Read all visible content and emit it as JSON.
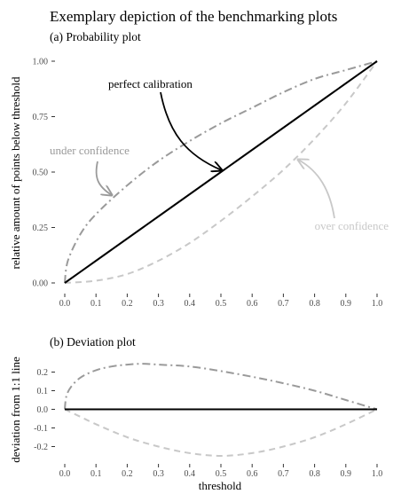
{
  "title": "Exemplary depiction of the benchmarking plots",
  "colors": {
    "perfect": "#000000",
    "under": "#9a9a9a",
    "over": "#c8c8c8",
    "tick_text": "#4d4d4d"
  },
  "chart_data": [
    {
      "type": "line",
      "subtitle": "(a) Probability plot",
      "xlabel": "",
      "ylabel": "relative amount of points below threshold",
      "xlim": [
        0,
        1
      ],
      "ylim": [
        0,
        1
      ],
      "x_ticks": [
        "0.0",
        "0.1",
        "0.2",
        "0.3",
        "0.4",
        "0.5",
        "0.6",
        "0.7",
        "0.8",
        "0.9",
        "1.0"
      ],
      "y_ticks": [
        "0.00",
        "0.25",
        "0.50",
        "0.75",
        "1.00"
      ],
      "grid": false,
      "series": [
        {
          "role": "perfect",
          "style": "solid",
          "x": [
            0,
            0.1,
            0.2,
            0.3,
            0.4,
            0.5,
            0.6,
            0.7,
            0.8,
            0.9,
            1.0
          ],
          "y": [
            0,
            0.1,
            0.2,
            0.3,
            0.4,
            0.5,
            0.6,
            0.7,
            0.8,
            0.9,
            1.0
          ]
        },
        {
          "role": "under",
          "style": "dot-dash",
          "x": [
            0,
            0.01,
            0.05,
            0.1,
            0.2,
            0.3,
            0.4,
            0.5,
            0.6,
            0.7,
            0.8,
            0.9,
            1.0
          ],
          "y": [
            0,
            0.1,
            0.22,
            0.31,
            0.44,
            0.55,
            0.64,
            0.72,
            0.79,
            0.86,
            0.92,
            0.96,
            1.0
          ]
        },
        {
          "role": "over",
          "style": "dashed",
          "x": [
            0,
            0.1,
            0.2,
            0.3,
            0.4,
            0.5,
            0.6,
            0.7,
            0.8,
            0.9,
            1.0
          ],
          "y": [
            0,
            0.01,
            0.04,
            0.1,
            0.18,
            0.28,
            0.39,
            0.51,
            0.65,
            0.81,
            1.0
          ]
        }
      ],
      "annotations": [
        {
          "text": "perfect calibration",
          "color": "#000000"
        },
        {
          "text": "under confidence",
          "color": "#9a9a9a"
        },
        {
          "text": "over confidence",
          "color": "#c8c8c8"
        }
      ]
    },
    {
      "type": "line",
      "subtitle": "(b) Deviation plot",
      "xlabel": "threshold",
      "ylabel": "deviation from 1:1 line",
      "xlim": [
        0,
        1
      ],
      "ylim": [
        -0.25,
        0.25
      ],
      "x_ticks": [
        "0.0",
        "0.1",
        "0.2",
        "0.3",
        "0.4",
        "0.5",
        "0.6",
        "0.7",
        "0.8",
        "0.9",
        "1.0"
      ],
      "y_ticks": [
        "-0.2",
        "-0.1",
        "0.0",
        "0.1",
        "0.2"
      ],
      "grid": false,
      "series": [
        {
          "role": "perfect",
          "style": "solid",
          "x": [
            0,
            1.0
          ],
          "y": [
            0,
            0
          ]
        },
        {
          "role": "under",
          "style": "dot-dash",
          "x": [
            0,
            0.005,
            0.02,
            0.05,
            0.1,
            0.15,
            0.2,
            0.25,
            0.3,
            0.4,
            0.5,
            0.6,
            0.7,
            0.8,
            0.9,
            1.0
          ],
          "y": [
            0,
            0.07,
            0.12,
            0.17,
            0.21,
            0.23,
            0.24,
            0.245,
            0.24,
            0.23,
            0.205,
            0.175,
            0.14,
            0.1,
            0.05,
            0
          ]
        },
        {
          "role": "over",
          "style": "dashed",
          "x": [
            0,
            0.05,
            0.1,
            0.2,
            0.3,
            0.4,
            0.5,
            0.6,
            0.7,
            0.8,
            0.9,
            1.0
          ],
          "y": [
            0,
            -0.04,
            -0.08,
            -0.15,
            -0.2,
            -0.235,
            -0.25,
            -0.235,
            -0.2,
            -0.15,
            -0.08,
            0
          ]
        }
      ]
    }
  ]
}
